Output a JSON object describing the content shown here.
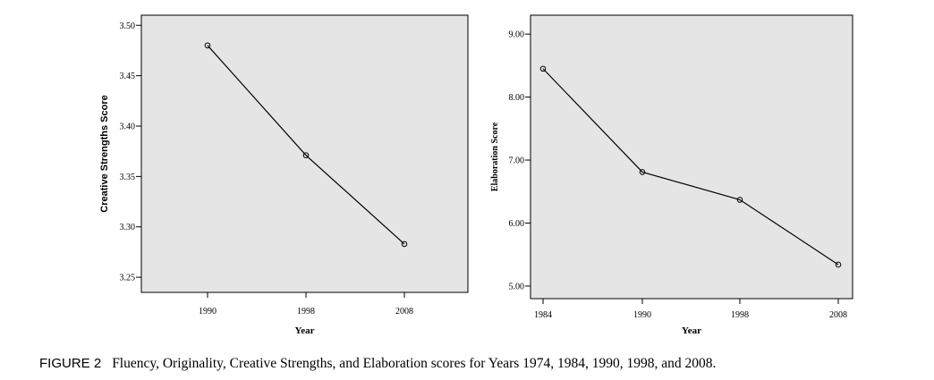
{
  "chart_data": [
    {
      "type": "line",
      "xlabel": "Year",
      "ylabel": "Creative Strengths Score",
      "categories": [
        "1990",
        "1998",
        "2008"
      ],
      "values": [
        3.48,
        3.371,
        3.283
      ],
      "ylim": [
        3.235,
        3.51
      ],
      "yticks": [
        "3.25",
        "3.30",
        "3.35",
        "3.40",
        "3.45",
        "3.50"
      ],
      "grid": false,
      "line_color": "#000000",
      "background": "#e5e5e5"
    },
    {
      "type": "line",
      "xlabel": "Year",
      "ylabel": "Elaboration Score",
      "categories": [
        "1984",
        "1990",
        "1998",
        "2008"
      ],
      "values": [
        8.45,
        6.81,
        6.37,
        5.34
      ],
      "ylim": [
        4.8,
        9.3
      ],
      "yticks": [
        "5.00",
        "6.00",
        "7.00",
        "8.00",
        "9.00"
      ],
      "grid": false,
      "line_color": "#000000",
      "background": "#e5e5e5"
    }
  ],
  "caption": {
    "label": "FIGURE 2",
    "text": "Fluency, Originality, Creative Strengths, and Elaboration scores for Years 1974, 1984, 1990, 1998, and 2008."
  }
}
